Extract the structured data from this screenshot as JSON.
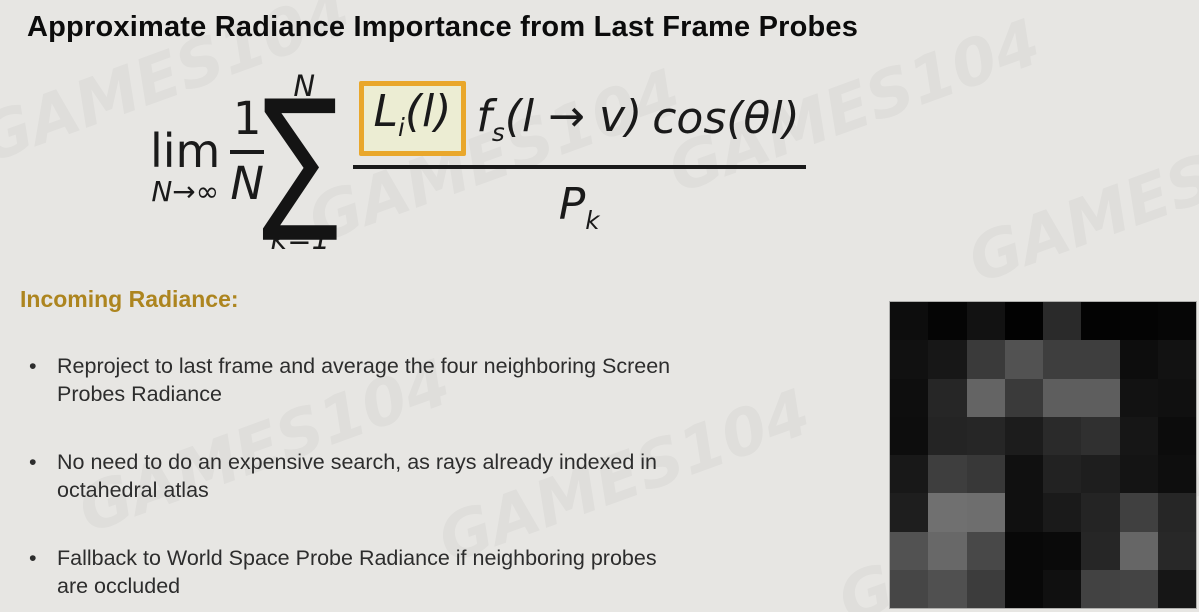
{
  "slide": {
    "title": "Approximate Radiance Importance from Last Frame Probes"
  },
  "formula": {
    "lim_word": "lim",
    "lim_sub": "N→∞",
    "frac_num": "1",
    "frac_den": "N",
    "sum_upper": "N",
    "sum_symbol": "∑",
    "sum_lower": "k=1",
    "radiance_base": "L",
    "radiance_sub": "i",
    "radiance_args": "(l)",
    "brdf_base": "f",
    "brdf_sub": "s",
    "brdf_args": "(l → v)",
    "cosine_term": "cos(θl)",
    "pdf_base": "P",
    "pdf_sub": "k",
    "highlight_border_color": "#e9a72b",
    "highlight_fill_color": "#ecedd3"
  },
  "section_heading": "Incoming Radiance:",
  "bullets": [
    {
      "lines": [
        "Reproject to last frame and average the four neighboring Screen",
        "Probes Radiance"
      ]
    },
    {
      "lines": [
        "No need to do an expensive search, as rays already indexed in",
        "octahedral atlas"
      ]
    },
    {
      "lines": [
        "Fallback to World Space Probe Radiance if neighboring probes",
        "are occluded"
      ]
    }
  ],
  "probe_texture": {
    "grid_size": 8,
    "pixels": [
      [
        "#0d0d0d",
        "#050505",
        "#121212",
        "#020202",
        "#2a2a2a",
        "#030303",
        "#040404",
        "#060606"
      ],
      [
        "#111111",
        "#171717",
        "#3a3a3a",
        "#525252",
        "#3e3e3e",
        "#3e3e3e",
        "#0d0d0d",
        "#121212"
      ],
      [
        "#0e0e0e",
        "#262626",
        "#646464",
        "#3a3a3a",
        "#5e5e5e",
        "#5e5e5e",
        "#121212",
        "#101010"
      ],
      [
        "#0d0d0d",
        "#242424",
        "#262626",
        "#1c1c1c",
        "#2a2a2a",
        "#303030",
        "#161616",
        "#0c0c0c"
      ],
      [
        "#181818",
        "#3e3e3e",
        "#383838",
        "#101010",
        "#222222",
        "#1e1e1e",
        "#141414",
        "#0e0e0e"
      ],
      [
        "#1e1e1e",
        "#707070",
        "#6e6e6e",
        "#101010",
        "#1a1a1a",
        "#242424",
        "#404040",
        "#262626"
      ],
      [
        "#525252",
        "#686868",
        "#484848",
        "#080808",
        "#0a0a0a",
        "#262626",
        "#666666",
        "#282828"
      ],
      [
        "#464646",
        "#505050",
        "#3c3c3c",
        "#080808",
        "#101010",
        "#424242",
        "#444444",
        "#161616"
      ]
    ]
  },
  "watermark": {
    "text": "GAMES104"
  },
  "colors": {
    "background": "#e7e6e3",
    "title": "#0c0c0c",
    "heading": "#ad851f",
    "body_text": "#2d2d2d",
    "formula_ink": "#1a1a1a"
  }
}
